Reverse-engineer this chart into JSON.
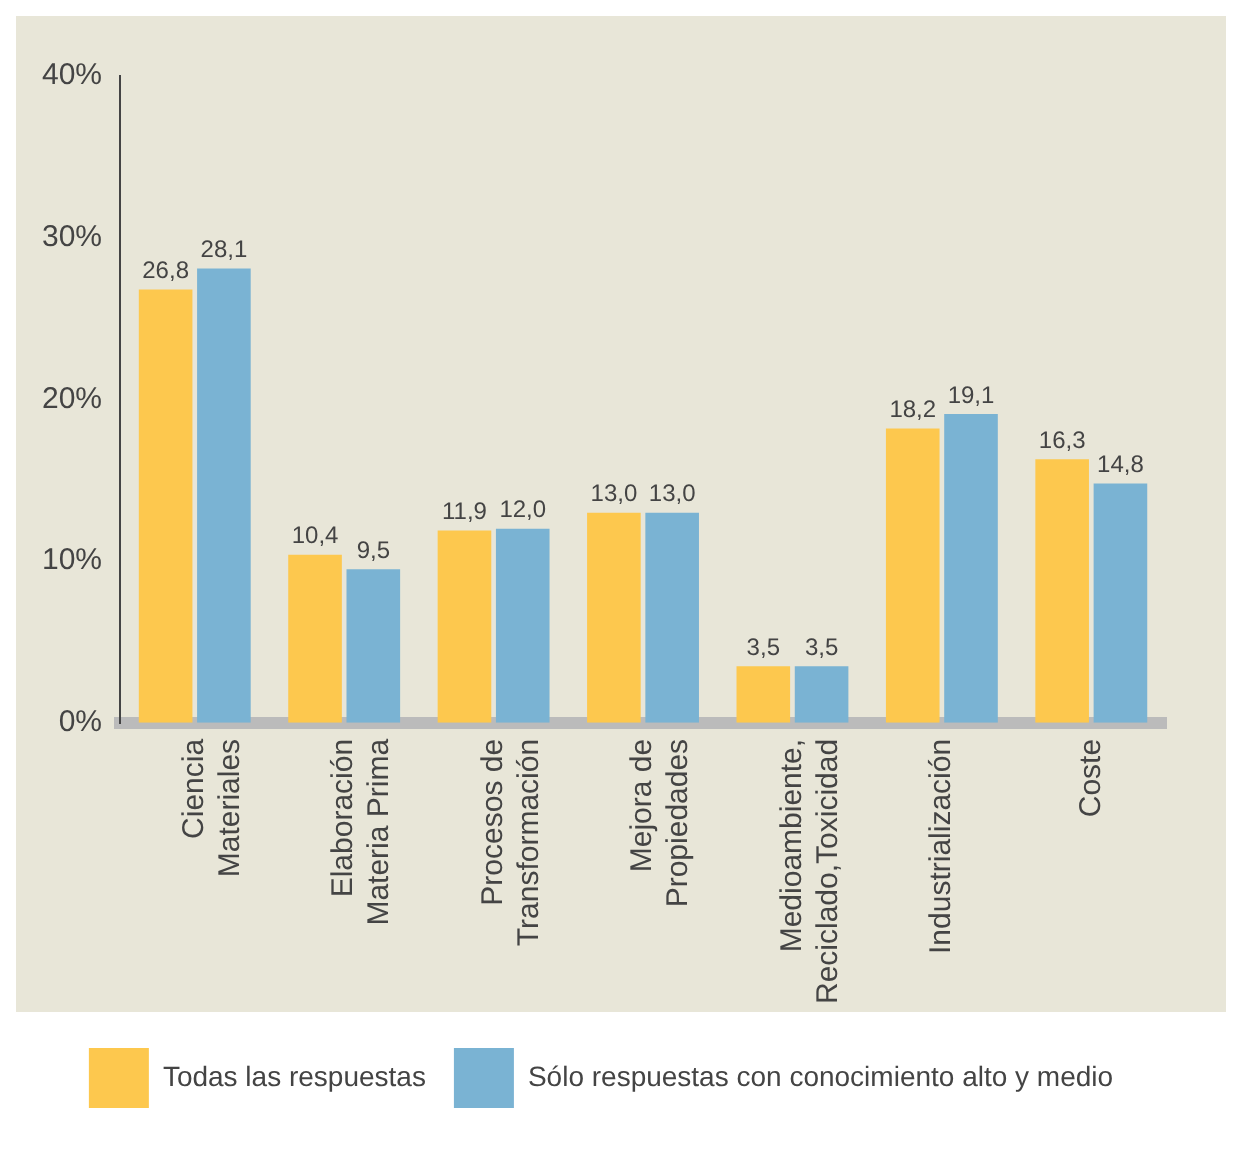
{
  "chart_data": {
    "type": "bar",
    "categories": [
      "Ciencia Materiales",
      "Elaboración Materia Prima",
      "Procesos de Transformación",
      "Mejora de Propiedades",
      "Medioambiente, Reciclado,Toxicidad",
      "Industrialización",
      "Coste"
    ],
    "series": [
      {
        "name": "Todas las respuestas",
        "color": "#fdc84e",
        "values": [
          26.8,
          10.4,
          11.9,
          13.0,
          3.5,
          18.2,
          16.3
        ],
        "value_labels": [
          "26,8",
          "10,4",
          "11,9",
          "13,0",
          "3,5",
          "18,2",
          "16,3"
        ]
      },
      {
        "name": "Sólo respuestas con conocimiento alto y medio",
        "color": "#7ab3d3",
        "values": [
          28.1,
          9.5,
          12.0,
          13.0,
          3.5,
          19.1,
          14.8
        ],
        "value_labels": [
          "28,1",
          "9,5",
          "12,0",
          "13,0",
          "3,5",
          "19,1",
          "14,8"
        ]
      }
    ],
    "ylim": [
      0,
      40
    ],
    "yticks": [
      {
        "value": 0,
        "label": "0%"
      },
      {
        "value": 10,
        "label": "10%"
      },
      {
        "value": 20,
        "label": "20%"
      },
      {
        "value": 30,
        "label": "30%"
      },
      {
        "value": 40,
        "label": "40%"
      }
    ],
    "grid": false,
    "legend": "bottom"
  }
}
